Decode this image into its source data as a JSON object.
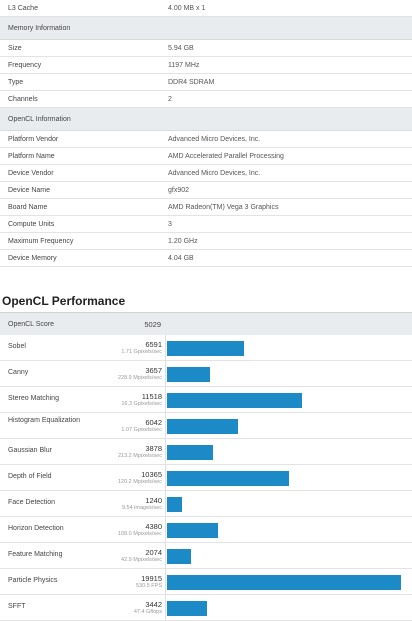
{
  "spec_rows_top": [
    {
      "label": "L3 Cache",
      "value": "4.00 MB x 1"
    }
  ],
  "memory": {
    "header": "Memory Information",
    "rows": [
      {
        "label": "Size",
        "value": "5.94 GB"
      },
      {
        "label": "Frequency",
        "value": "1197 MHz"
      },
      {
        "label": "Type",
        "value": "DDR4 SDRAM"
      },
      {
        "label": "Channels",
        "value": "2"
      }
    ]
  },
  "opencl": {
    "header": "OpenCL Information",
    "rows": [
      {
        "label": "Platform Vendor",
        "value": "Advanced Micro Devices, Inc."
      },
      {
        "label": "Platform Name",
        "value": "AMD Accelerated Parallel Processing"
      },
      {
        "label": "Device Vendor",
        "value": "Advanced Micro Devices, Inc."
      },
      {
        "label": "Device Name",
        "value": "gfx902"
      },
      {
        "label": "Board Name",
        "value": "AMD Radeon(TM) Vega 3 Graphics"
      },
      {
        "label": "Compute Units",
        "value": "3"
      },
      {
        "label": "Maximum Frequency",
        "value": "1.20 GHz"
      },
      {
        "label": "Device Memory",
        "value": "4.04 GB"
      }
    ]
  },
  "performance": {
    "title": "OpenCL Performance",
    "score_label": "OpenCL Score",
    "score": "5029",
    "bar_color": "#1d8ac8",
    "max_score": 19915,
    "tests": [
      {
        "name": "Sobel",
        "score": 6591,
        "rate": "1.71 Gpixels/sec"
      },
      {
        "name": "Canny",
        "score": 3657,
        "rate": "228.9 Mpixels/sec"
      },
      {
        "name": "Stereo Matching",
        "score": 11518,
        "rate": "16.3 Gpixels/sec"
      },
      {
        "name": "Histogram Equalization",
        "score": 6042,
        "rate": "1.07 Gpixels/sec"
      },
      {
        "name": "Gaussian Blur",
        "score": 3878,
        "rate": "213.2 Mpixels/sec"
      },
      {
        "name": "Depth of Field",
        "score": 10365,
        "rate": "120.2 Mpixels/sec"
      },
      {
        "name": "Face Detection",
        "score": 1240,
        "rate": "9.54 images/sec"
      },
      {
        "name": "Horizon Detection",
        "score": 4380,
        "rate": "108.0 Mpixels/sec"
      },
      {
        "name": "Feature Matching",
        "score": 2074,
        "rate": "42.9 Mpixels/sec"
      },
      {
        "name": "Particle Physics",
        "score": 19915,
        "rate": "530.5 FPS"
      },
      {
        "name": "SFFT",
        "score": 3442,
        "rate": "47.4 Gflops"
      }
    ]
  }
}
